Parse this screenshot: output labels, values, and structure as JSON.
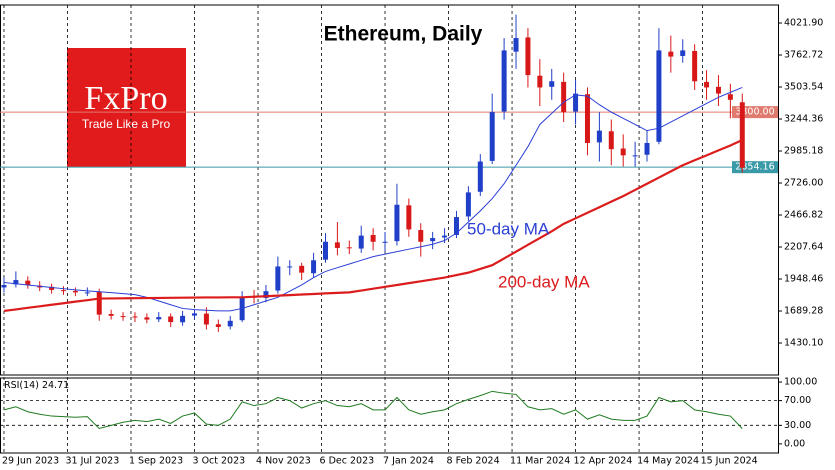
{
  "logo": {
    "brand": "FxPro",
    "tagline": "Trade Like a Pro"
  },
  "chart_data": [
    {
      "type": "candlestick",
      "title": "Ethereum, Daily",
      "x": [
        "2023-06-29",
        "2023-07-05",
        "2023-07-11",
        "2023-07-17",
        "2023-07-23",
        "2023-07-29",
        "2023-08-04",
        "2023-08-10",
        "2023-08-16",
        "2023-08-22",
        "2023-08-28",
        "2023-09-03",
        "2023-09-09",
        "2023-09-15",
        "2023-09-21",
        "2023-09-27",
        "2023-10-03",
        "2023-10-09",
        "2023-10-15",
        "2023-10-21",
        "2023-10-27",
        "2023-11-02",
        "2023-11-08",
        "2023-11-14",
        "2023-11-20",
        "2023-11-26",
        "2023-12-02",
        "2023-12-08",
        "2023-12-14",
        "2023-12-20",
        "2023-12-26",
        "2024-01-01",
        "2024-01-07",
        "2024-01-13",
        "2024-01-19",
        "2024-01-25",
        "2024-01-31",
        "2024-02-06",
        "2024-02-12",
        "2024-02-18",
        "2024-02-24",
        "2024-03-01",
        "2024-03-07",
        "2024-03-13",
        "2024-03-19",
        "2024-03-25",
        "2024-03-31",
        "2024-04-06",
        "2024-04-12",
        "2024-04-18",
        "2024-04-24",
        "2024-04-30",
        "2024-05-06",
        "2024-05-12",
        "2024-05-18",
        "2024-05-24",
        "2024-05-30",
        "2024-06-05",
        "2024-06-11",
        "2024-06-17",
        "2024-06-23",
        "2024-06-29",
        "2024-07-05"
      ],
      "open": [
        1880,
        1905,
        1935,
        1895,
        1885,
        1858,
        1852,
        1838,
        1845,
        1665,
        1648,
        1645,
        1638,
        1622,
        1645,
        1598,
        1652,
        1668,
        1582,
        1565,
        1615,
        1805,
        1795,
        1855,
        2045,
        2055,
        1995,
        2105,
        2245,
        2205,
        2195,
        2305,
        2245,
        2255,
        2545,
        2345,
        2255,
        2285,
        2305,
        2455,
        2655,
        2905,
        3305,
        3790,
        3905,
        3595,
        3505,
        3545,
        3305,
        3445,
        3055,
        3145,
        3005,
        2945,
        2955,
        3060,
        3790,
        3755,
        3795,
        3545,
        3505,
        3445,
        3380
      ],
      "high": [
        1960,
        2010,
        1970,
        1930,
        1910,
        1890,
        1880,
        1880,
        1870,
        1700,
        1680,
        1680,
        1670,
        1680,
        1670,
        1690,
        1700,
        1720,
        1620,
        1650,
        1850,
        1860,
        1900,
        2130,
        2100,
        2080,
        2160,
        2320,
        2410,
        2260,
        2380,
        2360,
        2330,
        2720,
        2600,
        2400,
        2330,
        2360,
        2500,
        2700,
        2960,
        3450,
        3900,
        4090,
        3980,
        3730,
        3650,
        3620,
        3560,
        3500,
        3300,
        3240,
        3120,
        3060,
        3150,
        3980,
        3920,
        3890,
        3850,
        3640,
        3600,
        3530,
        3450
      ],
      "low": [
        1840,
        1880,
        1870,
        1850,
        1830,
        1820,
        1810,
        1810,
        1610,
        1620,
        1610,
        1600,
        1590,
        1600,
        1560,
        1570,
        1620,
        1540,
        1520,
        1540,
        1600,
        1750,
        1760,
        1830,
        1980,
        1940,
        1960,
        2080,
        2140,
        2150,
        2160,
        2180,
        2170,
        2220,
        2290,
        2130,
        2190,
        2240,
        2280,
        2420,
        2620,
        2880,
        3240,
        3650,
        3500,
        3350,
        3400,
        3220,
        3200,
        2950,
        2900,
        2870,
        2860,
        2860,
        2900,
        3040,
        3620,
        3700,
        3480,
        3400,
        3350,
        3250,
        2810
      ],
      "close": [
        1900,
        1940,
        1900,
        1880,
        1860,
        1850,
        1840,
        1840,
        1660,
        1650,
        1640,
        1640,
        1620,
        1640,
        1600,
        1650,
        1670,
        1580,
        1560,
        1610,
        1800,
        1800,
        1850,
        2050,
        2050,
        2000,
        2100,
        2250,
        2200,
        2200,
        2300,
        2250,
        2250,
        2550,
        2350,
        2250,
        2280,
        2300,
        2450,
        2650,
        2900,
        3300,
        3800,
        3900,
        3600,
        3500,
        3550,
        3300,
        3450,
        3050,
        3150,
        3000,
        2950,
        2950,
        3050,
        3800,
        3750,
        3800,
        3550,
        3500,
        3450,
        3400,
        2850
      ],
      "up_color": "#1f3fc8",
      "down_color": "#d81818",
      "series": [
        {
          "name": "50-day MA",
          "color": "#2b3fd6",
          "values": [
            1920,
            1910,
            1900,
            1890,
            1880,
            1870,
            1860,
            1852,
            1845,
            1838,
            1830,
            1822,
            1800,
            1770,
            1740,
            1710,
            1700,
            1695,
            1690,
            1690,
            1710,
            1740,
            1770,
            1800,
            1850,
            1900,
            1960,
            2010,
            2040,
            2070,
            2100,
            2130,
            2150,
            2170,
            2190,
            2210,
            2230,
            2260,
            2320,
            2410,
            2500,
            2600,
            2720,
            2870,
            3020,
            3200,
            3290,
            3380,
            3440,
            3430,
            3360,
            3300,
            3250,
            3200,
            3150,
            3170,
            3220,
            3270,
            3320,
            3370,
            3420,
            3460,
            3500
          ]
        },
        {
          "name": "200-day MA",
          "color": "#dc1c1c",
          "values": [
            1690,
            1702,
            1715,
            1727,
            1740,
            1752,
            1765,
            1777,
            1790,
            1791,
            1792,
            1793,
            1794,
            1795,
            1796,
            1797,
            1798,
            1799,
            1799,
            1800,
            1800,
            1805,
            1809,
            1814,
            1818,
            1823,
            1827,
            1832,
            1836,
            1840,
            1855,
            1870,
            1885,
            1900,
            1915,
            1930,
            1945,
            1960,
            1980,
            2000,
            2030,
            2060,
            2115,
            2170,
            2225,
            2280,
            2335,
            2395,
            2440,
            2485,
            2530,
            2575,
            2620,
            2670,
            2720,
            2770,
            2820,
            2870,
            2910,
            2950,
            2990,
            3030,
            3074
          ]
        }
      ],
      "levels": [
        {
          "value": 3300,
          "label": "3300.00",
          "color": "#e07a6e"
        },
        {
          "value": 2854.16,
          "label": "2854.16",
          "color": "#3a9aa8"
        }
      ],
      "xlim": [
        "2023-06-27",
        "2024-07-23"
      ],
      "xticks": [
        {
          "value": "2023-06-29",
          "label": "29 Jun 2023"
        },
        {
          "value": "2023-07-31",
          "label": "31 Jul 2023"
        },
        {
          "value": "2023-09-01",
          "label": "1 Sep 2023"
        },
        {
          "value": "2023-10-03",
          "label": "3 Oct 2023"
        },
        {
          "value": "2023-11-04",
          "label": "4 Nov 2023"
        },
        {
          "value": "2023-12-06",
          "label": "6 Dec 2023"
        },
        {
          "value": "2024-01-07",
          "label": "7 Jan 2024"
        },
        {
          "value": "2024-02-08",
          "label": "8 Feb 2024"
        },
        {
          "value": "2024-03-11",
          "label": "11 Mar 2024"
        },
        {
          "value": "2024-04-12",
          "label": "12 Apr 2024"
        },
        {
          "value": "2024-05-14",
          "label": "14 May 2024"
        },
        {
          "value": "2024-06-15",
          "label": "15 Jun 2024"
        }
      ],
      "ylim": [
        1170.92,
        4167.69
      ],
      "yticks": [
        {
          "value": 1430.1,
          "label": "1430.10"
        },
        {
          "value": 1689.28,
          "label": "1689.28"
        },
        {
          "value": 1948.46,
          "label": "1948.46"
        },
        {
          "value": 2207.64,
          "label": "2207.64"
        },
        {
          "value": 2466.82,
          "label": "2466.82"
        },
        {
          "value": 2726,
          "label": "2726.00"
        },
        {
          "value": 2985.18,
          "label": "2985.18"
        },
        {
          "value": 3244.36,
          "label": "3244.36"
        },
        {
          "value": 3503.54,
          "label": "3503.54"
        },
        {
          "value": 3762.72,
          "label": "3762.72"
        },
        {
          "value": 4021.9,
          "label": "4021.90"
        }
      ]
    },
    {
      "type": "line",
      "title": "RSI(14)",
      "series": [
        {
          "name": "RSI",
          "color": "#1f7a1f",
          "values": [
            55,
            60,
            52,
            48,
            45,
            44,
            43,
            44,
            25,
            30,
            35,
            38,
            36,
            40,
            33,
            45,
            50,
            32,
            30,
            40,
            68,
            62,
            65,
            75,
            70,
            58,
            65,
            70,
            62,
            60,
            65,
            55,
            55,
            75,
            55,
            48,
            52,
            55,
            65,
            72,
            78,
            85,
            82,
            80,
            60,
            55,
            57,
            48,
            55,
            40,
            47,
            40,
            38,
            38,
            45,
            75,
            68,
            70,
            55,
            52,
            48,
            45,
            24.71
          ]
        }
      ],
      "ylim": [
        -14.75,
        106.56
      ],
      "yticks": [
        {
          "value": 0,
          "label": "0.00"
        },
        {
          "value": 30,
          "label": "30.00"
        },
        {
          "value": 70,
          "label": "70.00"
        },
        {
          "value": 100,
          "label": "100.00"
        }
      ],
      "levels": [
        30,
        70
      ]
    }
  ]
}
